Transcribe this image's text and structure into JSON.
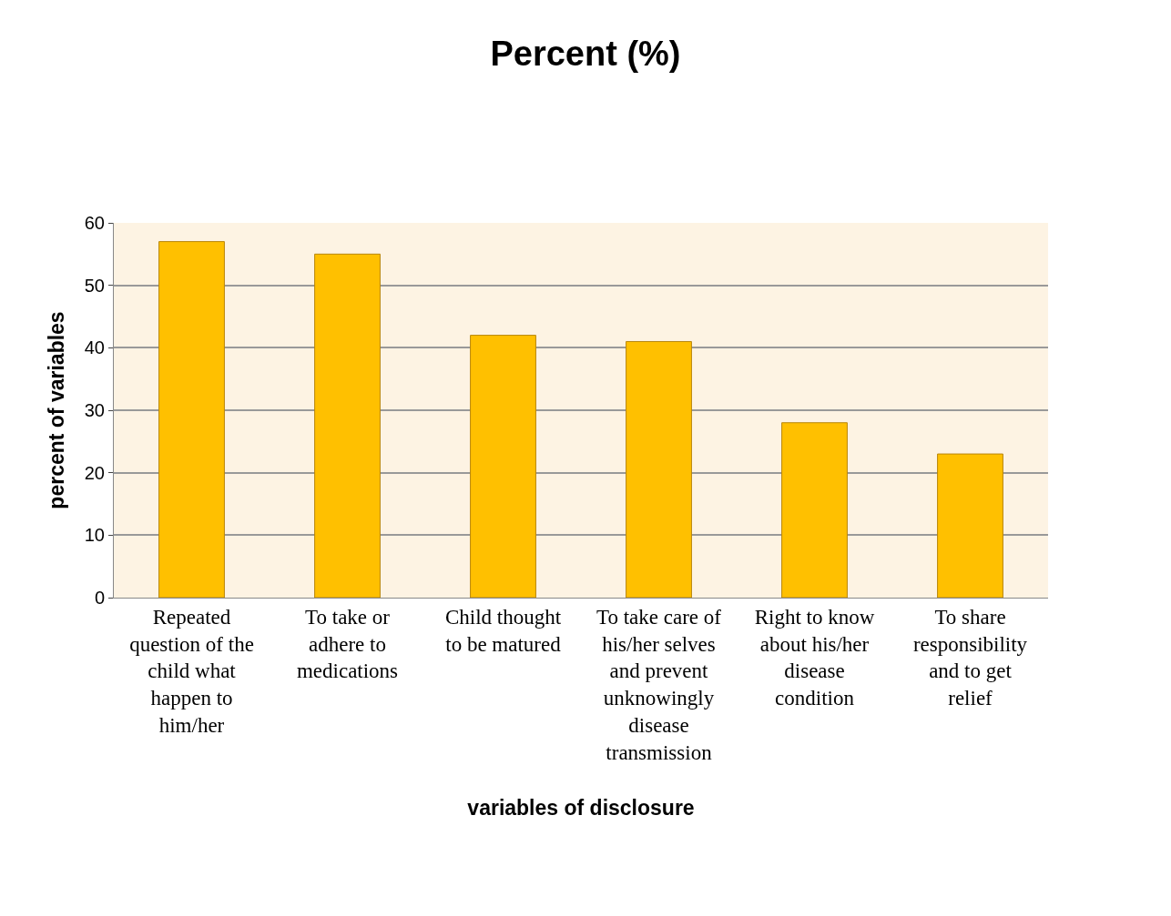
{
  "chart_data": {
    "type": "bar",
    "title": "Percent (%)",
    "xlabel": "variables of disclosure",
    "ylabel": "percent of variables",
    "categories": [
      "Repeated question of the child what happen to him/her",
      "To take or adhere to medications",
      "Child thought to be matured",
      "To take care of his/her selves and prevent unknowingly disease transmission",
      "Right to know about his/her disease condition",
      "To share responsibility and to get relief"
    ],
    "values": [
      57,
      55,
      42,
      41,
      28,
      23
    ],
    "color": "#ffc000",
    "ylim": [
      0,
      60
    ],
    "yticks": [
      0,
      10,
      20,
      30,
      40,
      50,
      60
    ],
    "grid": "y",
    "legend": false
  }
}
